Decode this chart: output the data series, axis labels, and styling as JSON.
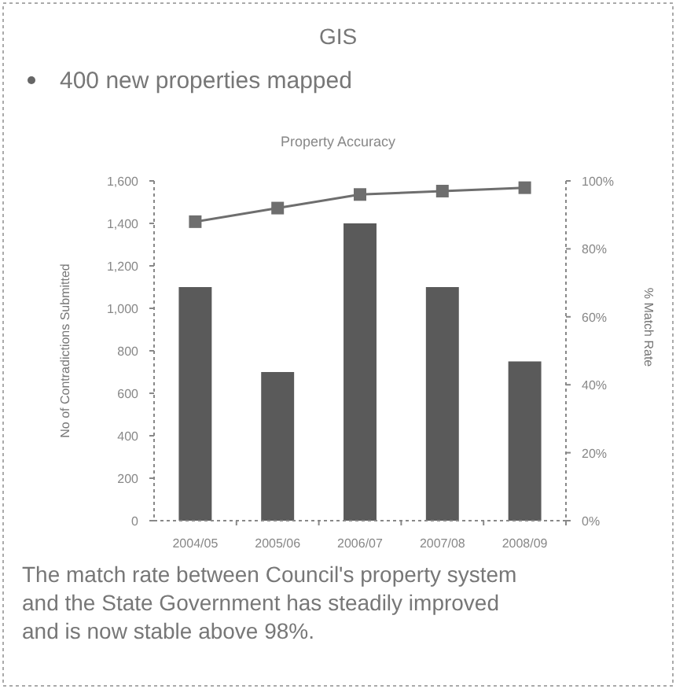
{
  "chart_data": {
    "type": "bar",
    "title": "GIS",
    "subtitle": "Property Accuracy",
    "annotations": [
      "400 new properties mapped",
      "The match rate between Council's property system and the State Government has steadily improved and is now stable above 98%."
    ],
    "categories": [
      "2004/05",
      "2005/06",
      "2006/07",
      "2007/08",
      "2008/09"
    ],
    "series": [
      {
        "color": "#5a5a5a",
        "values": [
          1100,
          700,
          1400,
          1100,
          750
        ]
      },
      {
        "type": "line",
        "axis": "y2",
        "color": "#6e6e6e",
        "values": [
          88,
          92,
          96,
          97,
          98
        ]
      }
    ],
    "ylabel": "No of Contradictions Submitted",
    "y2label": "% Match Rate",
    "ylim": [
      0,
      1600
    ],
    "yticks": [
      0,
      200,
      400,
      600,
      800,
      {
        "value": 1000,
        "label": "1,000"
      },
      {
        "value": 1200,
        "label": "1,200"
      },
      {
        "value": 1400,
        "label": "1,400"
      },
      {
        "value": 1600,
        "label": "1,600"
      }
    ],
    "y2lim": [
      0,
      100
    ],
    "y2ticks": [
      {
        "value": 0,
        "label": "0%"
      },
      {
        "value": 20,
        "label": "20%"
      },
      {
        "value": 40,
        "label": "40%"
      },
      {
        "value": 60,
        "label": "60%"
      },
      {
        "value": 80,
        "label": "80%"
      },
      {
        "value": 100,
        "label": "100%"
      }
    ],
    "grid": false,
    "marker": "square",
    "line_style": "solid"
  }
}
